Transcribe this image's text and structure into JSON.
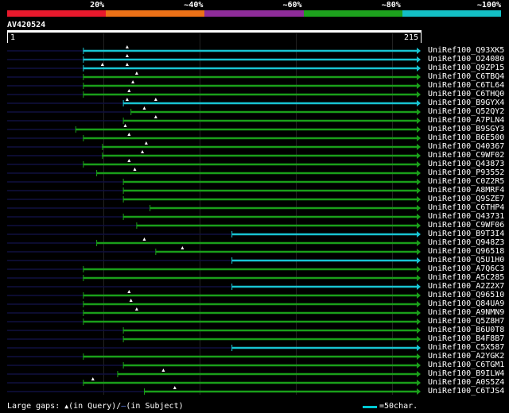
{
  "legend": {
    "segments": [
      {
        "label": "20%",
        "color": "#e8192c"
      },
      {
        "label": "~40%",
        "color": "#ec7117"
      },
      {
        "label": "~60%",
        "color": "#8e2c99"
      },
      {
        "label": "~80%",
        "color": "#1da11d"
      },
      {
        "label": "~100%",
        "color": "#13bfc5"
      }
    ]
  },
  "query": {
    "id": "AV420524",
    "length_start": "1",
    "length_end": "215"
  },
  "colors": {
    "green": "#1a9f1a",
    "cyan": "#18c4d2",
    "dark": "#101040"
  },
  "alignment_data": {
    "query_length": 215,
    "hits": [
      {
        "label": "UniRef100_Q93XK5",
        "start": 40,
        "end": 215,
        "color": "cyan",
        "marks": [
          63
        ]
      },
      {
        "label": "UniRef100_O24080",
        "start": 40,
        "end": 215,
        "color": "cyan",
        "marks": [
          63
        ]
      },
      {
        "label": "UniRef100_Q9ZP15",
        "start": 40,
        "end": 215,
        "color": "cyan",
        "marks": [
          50,
          63
        ]
      },
      {
        "label": "UniRef100_C6TBQ4",
        "start": 40,
        "end": 215,
        "color": "green",
        "marks": [
          68
        ]
      },
      {
        "label": "UniRef100_C6TL64",
        "start": 40,
        "end": 215,
        "color": "green",
        "marks": [
          66
        ]
      },
      {
        "label": "UniRef100_C6THQ0",
        "start": 40,
        "end": 215,
        "color": "green",
        "marks": [
          64
        ]
      },
      {
        "label": "UniRef100_B9GYX4",
        "start": 61,
        "end": 215,
        "color": "cyan",
        "marks": [
          63,
          78
        ]
      },
      {
        "label": "UniRef100_Q52QY2",
        "start": 65,
        "end": 215,
        "color": "green",
        "marks": [
          72
        ]
      },
      {
        "label": "UniRef100_A7PLN4",
        "start": 61,
        "end": 215,
        "color": "green",
        "marks": [
          78
        ]
      },
      {
        "label": "UniRef100_B9SGY3",
        "start": 36,
        "end": 215,
        "color": "green",
        "marks": [
          62
        ]
      },
      {
        "label": "UniRef100_B6E500",
        "start": 40,
        "end": 215,
        "color": "green",
        "marks": [
          64
        ]
      },
      {
        "label": "UniRef100_Q40367",
        "start": 50,
        "end": 215,
        "color": "green",
        "marks": [
          73
        ]
      },
      {
        "label": "UniRef100_C9WF02",
        "start": 50,
        "end": 215,
        "color": "green",
        "marks": [
          71
        ]
      },
      {
        "label": "UniRef100_Q43873",
        "start": 40,
        "end": 215,
        "color": "green",
        "marks": [
          64
        ]
      },
      {
        "label": "UniRef100_P93552",
        "start": 47,
        "end": 215,
        "color": "green",
        "marks": [
          67
        ]
      },
      {
        "label": "UniRef100_C0Z2R5",
        "start": 61,
        "end": 215,
        "color": "green",
        "marks": []
      },
      {
        "label": "UniRef100_A8MRF4",
        "start": 61,
        "end": 215,
        "color": "green",
        "marks": []
      },
      {
        "label": "UniRef100_Q9SZE7",
        "start": 61,
        "end": 215,
        "color": "green",
        "marks": []
      },
      {
        "label": "UniRef100_C6THP4",
        "start": 75,
        "end": 215,
        "color": "green",
        "marks": []
      },
      {
        "label": "UniRef100_Q43731",
        "start": 61,
        "end": 215,
        "color": "green",
        "marks": []
      },
      {
        "label": "UniRef100_C9WF06",
        "start": 68,
        "end": 215,
        "color": "green",
        "marks": []
      },
      {
        "label": "UniRef100_B9T3I4",
        "start": 118,
        "end": 215,
        "color": "cyan",
        "marks": []
      },
      {
        "label": "UniRef100_Q948Z3",
        "start": 47,
        "end": 215,
        "color": "green",
        "marks": [
          72
        ]
      },
      {
        "label": "UniRef100_Q96518",
        "start": 78,
        "end": 215,
        "color": "green",
        "marks": [
          92
        ]
      },
      {
        "label": "UniRef100_Q5U1H0",
        "start": 118,
        "end": 215,
        "color": "cyan",
        "marks": []
      },
      {
        "label": "UniRef100_A7Q6C3",
        "start": 40,
        "end": 215,
        "color": "green",
        "marks": []
      },
      {
        "label": "UniRef100_A5C285",
        "start": 40,
        "end": 215,
        "color": "green",
        "marks": []
      },
      {
        "label": "UniRef100_A2Z2X7",
        "start": 118,
        "end": 215,
        "color": "cyan",
        "marks": []
      },
      {
        "label": "UniRef100_Q96510",
        "start": 40,
        "end": 215,
        "color": "green",
        "marks": [
          64
        ]
      },
      {
        "label": "UniRef100_Q84UA9",
        "start": 40,
        "end": 215,
        "color": "green",
        "marks": [
          65
        ]
      },
      {
        "label": "UniRef100_A9NMN9",
        "start": 40,
        "end": 215,
        "color": "green",
        "marks": [
          68
        ]
      },
      {
        "label": "UniRef100_Q5Z8H7",
        "start": 40,
        "end": 215,
        "color": "green",
        "marks": []
      },
      {
        "label": "UniRef100_B6U0T8",
        "start": 61,
        "end": 215,
        "color": "green",
        "marks": []
      },
      {
        "label": "UniRef100_B4F8B7",
        "start": 61,
        "end": 215,
        "color": "green",
        "marks": []
      },
      {
        "label": "UniRef100_C5X587",
        "start": 118,
        "end": 215,
        "color": "cyan",
        "marks": []
      },
      {
        "label": "UniRef100_A2YGK2",
        "start": 40,
        "end": 215,
        "color": "green",
        "marks": []
      },
      {
        "label": "UniRef100_C6TGM1",
        "start": 61,
        "end": 215,
        "color": "green",
        "marks": []
      },
      {
        "label": "UniRef100_B9ILW4",
        "start": 58,
        "end": 215,
        "color": "green",
        "marks": [
          82
        ]
      },
      {
        "label": "UniRef100_A0S5Z4",
        "start": 40,
        "end": 215,
        "color": "green",
        "marks": [
          45
        ]
      },
      {
        "label": "UniRef100_C6TJS4",
        "start": 72,
        "end": 215,
        "color": "green",
        "marks": [
          88
        ]
      }
    ]
  },
  "footer": {
    "gaps_prefix": "Large gaps:",
    "gaps_query": "(in Query)/",
    "gaps_subject": "(in Subject)",
    "gaps_dash": "–",
    "triangle_icon": "▲",
    "scale_text": "=50char."
  }
}
